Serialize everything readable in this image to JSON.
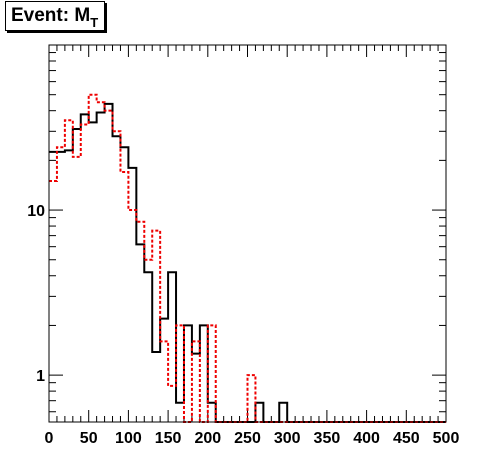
{
  "title": {
    "main": "Event: M",
    "subscript": "T"
  },
  "chart_data": {
    "type": "histogram",
    "title": "Event: M_T",
    "xlabel": "",
    "ylabel": "",
    "xlim": [
      0,
      500
    ],
    "ylim_log": [
      0.52,
      100
    ],
    "y_scale": "log",
    "bin_width": 10,
    "x_ticks": [
      0,
      50,
      100,
      150,
      200,
      250,
      300,
      350,
      400,
      450,
      500
    ],
    "x_tick_labels": [
      "0",
      "50",
      "100",
      "150",
      "200",
      "250",
      "300",
      "350",
      "400",
      "450",
      "500"
    ],
    "y_ticks": [
      1,
      10
    ],
    "y_tick_labels": [
      "1",
      "10"
    ],
    "grid": false,
    "legend": "none",
    "series": [
      {
        "style": "solid",
        "color": "#000000",
        "values": [
          22.5,
          22.5,
          23.0,
          31.0,
          38.0,
          34.0,
          39.0,
          44.0,
          28.0,
          24.0,
          18.0,
          6.2,
          4.2,
          1.38,
          2.2,
          4.2,
          0.68,
          2.0,
          1.35,
          2.0,
          0.68,
          0,
          0,
          0,
          0,
          0,
          0.68,
          0,
          0,
          0.68,
          0,
          0,
          0,
          0,
          0,
          0,
          0,
          0,
          0,
          0,
          0,
          0,
          0,
          0,
          0,
          0,
          0,
          0,
          0,
          0
        ]
      },
      {
        "style": "dotted",
        "color": "#ee0000",
        "values": [
          15.0,
          24.0,
          35.0,
          21.0,
          33.0,
          50.0,
          45.0,
          40.0,
          30.0,
          17.0,
          10.0,
          8.5,
          5.0,
          7.5,
          1.6,
          0.86,
          2.0,
          0.52,
          1.6,
          0.52,
          2.0,
          0,
          0,
          0,
          0,
          1.0,
          0,
          0,
          0,
          0,
          0,
          0,
          0,
          0,
          0,
          0,
          0,
          0,
          0,
          0,
          0,
          0,
          0,
          0,
          0,
          0,
          0,
          0,
          0,
          0
        ]
      }
    ],
    "colors": {
      "frame": "#000000",
      "solid_series": "#000000",
      "dotted_series": "#ee0000"
    }
  }
}
